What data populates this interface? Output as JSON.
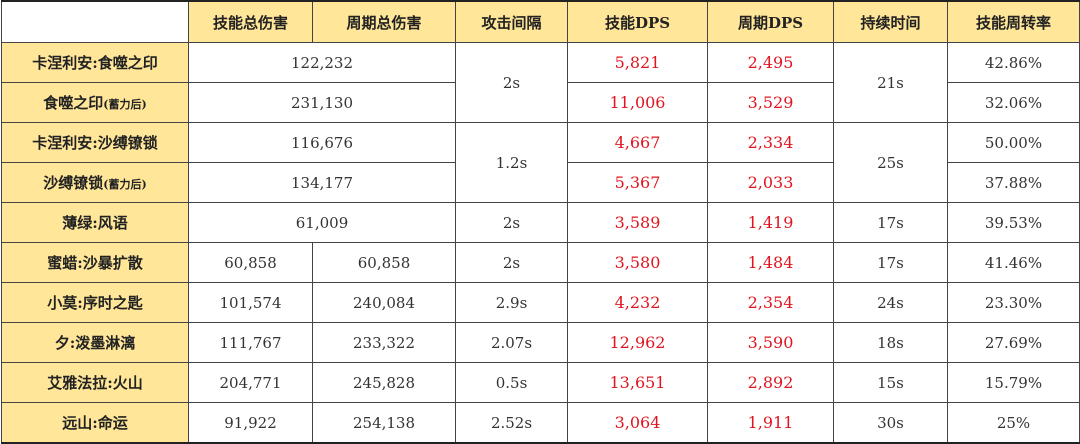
{
  "headers": [
    "",
    "技能总伤害",
    "周期总伤害",
    "攻击间隔",
    "技能DPS",
    "周期DPS",
    "持续时间",
    "技能周转率"
  ],
  "rows": [
    {
      "name": "卡涅利安:食噬之印",
      "suffix": "",
      "skill_damage": "122,232",
      "cycle_damage": "",
      "interval": "2s",
      "skill_dps": "5,821",
      "cycle_dps": "2,495",
      "duration": "21s",
      "turnover": "42.86%"
    },
    {
      "name": "食噬之印",
      "suffix": "(蓄力后)",
      "skill_damage": "231,130",
      "cycle_damage": "",
      "interval": "",
      "skill_dps": "11,006",
      "cycle_dps": "3,529",
      "duration": "",
      "turnover": "32.06%"
    },
    {
      "name": "卡涅利安:沙缚镣锁",
      "suffix": "",
      "skill_damage": "116,676",
      "cycle_damage": "",
      "interval": "1.2s",
      "skill_dps": "4,667",
      "cycle_dps": "2,334",
      "duration": "25s",
      "turnover": "50.00%"
    },
    {
      "name": "沙缚镣锁",
      "suffix": "(蓄力后)",
      "skill_damage": "134,177",
      "cycle_damage": "",
      "interval": "",
      "skill_dps": "5,367",
      "cycle_dps": "2,033",
      "duration": "",
      "turnover": "37.88%"
    },
    {
      "name": "薄绿:风语",
      "suffix": "",
      "skill_damage": "61,009",
      "cycle_damage": "",
      "interval": "2s",
      "skill_dps": "3,589",
      "cycle_dps": "1,419",
      "duration": "17s",
      "turnover": "39.53%"
    },
    {
      "name": "蜜蜡:沙暴扩散",
      "suffix": "",
      "skill_damage": "60,858",
      "cycle_damage": "60,858",
      "interval": "2s",
      "skill_dps": "3,580",
      "cycle_dps": "1,484",
      "duration": "17s",
      "turnover": "41.46%"
    },
    {
      "name": "小莫:序时之匙",
      "suffix": "",
      "skill_damage": "101,574",
      "cycle_damage": "240,084",
      "interval": "2.9s",
      "skill_dps": "4,232",
      "cycle_dps": "2,354",
      "duration": "24s",
      "turnover": "23.30%"
    },
    {
      "name": "夕:泼墨淋漓",
      "suffix": "",
      "skill_damage": "111,767",
      "cycle_damage": "233,322",
      "interval": "2.07s",
      "skill_dps": "12,962",
      "cycle_dps": "3,590",
      "duration": "18s",
      "turnover": "27.69%"
    },
    {
      "name": "艾雅法拉:火山",
      "suffix": "",
      "skill_damage": "204,771",
      "cycle_damage": "245,828",
      "interval": "0.5s",
      "skill_dps": "13,651",
      "cycle_dps": "2,892",
      "duration": "15s",
      "turnover": "15.79%"
    },
    {
      "name": "远山:命运",
      "suffix": "",
      "skill_damage": "91,922",
      "cycle_damage": "254,138",
      "interval": "2.52s",
      "skill_dps": "3,064",
      "cycle_dps": "1,911",
      "duration": "30s",
      "turnover": "25%"
    }
  ],
  "colors": {
    "header_bg": "#ffe699",
    "dps_text": "#e0141e"
  }
}
